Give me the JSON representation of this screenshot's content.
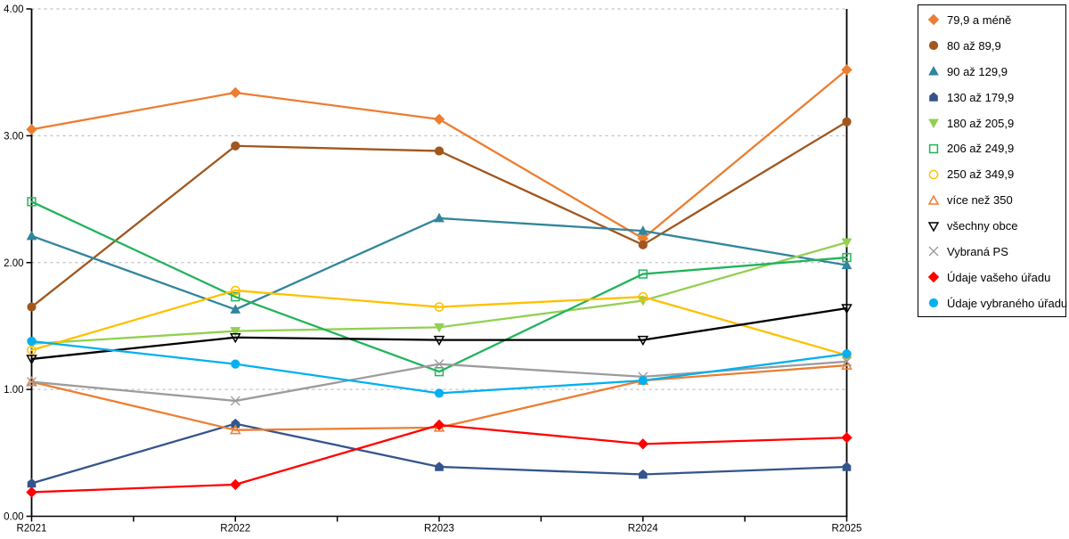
{
  "chart_data": {
    "type": "line",
    "title": "",
    "xlabel": "",
    "ylabel": "",
    "x": [
      "R2021",
      "R2022",
      "R2023",
      "R2024",
      "R2025"
    ],
    "ylim": [
      0,
      4
    ],
    "yticks": [
      "0.00",
      "1.00",
      "2.00",
      "3.00",
      "4.00"
    ],
    "grid": "horizontal-dashed",
    "grid_color": "#c0c0c0",
    "axis_color": "#000000",
    "legend_position": "right-outside",
    "series": [
      {
        "name": "79,9 a méně",
        "color": "#ED7D31",
        "marker": "diamond",
        "filled": true,
        "values": [
          3.05,
          3.34,
          3.13,
          2.19,
          3.52
        ]
      },
      {
        "name": "80 až 89,9",
        "color": "#A0571E",
        "marker": "circle",
        "filled": true,
        "values": [
          1.65,
          2.92,
          2.88,
          2.14,
          3.11
        ]
      },
      {
        "name": "90 až 129,9",
        "color": "#31859C",
        "marker": "triangle-up",
        "filled": true,
        "values": [
          2.21,
          1.63,
          2.35,
          2.25,
          1.98
        ]
      },
      {
        "name": "130 až 179,9",
        "color": "#34558B",
        "marker": "pentagon",
        "filled": true,
        "values": [
          0.26,
          0.73,
          0.39,
          0.33,
          0.39
        ]
      },
      {
        "name": "180 až 205,9",
        "color": "#92D050",
        "marker": "triangle-down",
        "filled": true,
        "values": [
          1.36,
          1.46,
          1.49,
          1.7,
          2.16
        ]
      },
      {
        "name": "206 až 249,9",
        "color": "#22B35B",
        "marker": "square",
        "filled": false,
        "values": [
          2.48,
          1.73,
          1.14,
          1.91,
          2.04
        ]
      },
      {
        "name": "250 až 349,9",
        "color": "#FFC000",
        "marker": "circle",
        "filled": false,
        "values": [
          1.31,
          1.78,
          1.65,
          1.73,
          1.27
        ]
      },
      {
        "name": "více než 350",
        "color": "#ED7D31",
        "marker": "triangle-up",
        "filled": false,
        "values": [
          1.06,
          0.68,
          0.7,
          1.07,
          1.19
        ]
      },
      {
        "name": "všechny obce",
        "color": "#000000",
        "marker": "triangle-down",
        "filled": false,
        "values": [
          1.24,
          1.41,
          1.39,
          1.39,
          1.64
        ]
      },
      {
        "name": "Vybraná PS",
        "color": "#9C9C9C",
        "marker": "x",
        "filled": false,
        "values": [
          1.06,
          0.91,
          1.2,
          1.1,
          1.22
        ]
      },
      {
        "name": "Údaje vašeho úřadu",
        "color": "#FF0000",
        "marker": "diamond",
        "filled": true,
        "values": [
          0.19,
          0.25,
          0.72,
          0.57,
          0.62
        ]
      },
      {
        "name": "Údaje vybraného úřadu",
        "color": "#00B0F0",
        "marker": "circle",
        "filled": true,
        "values": [
          1.38,
          1.2,
          0.97,
          1.07,
          1.28
        ]
      }
    ]
  }
}
